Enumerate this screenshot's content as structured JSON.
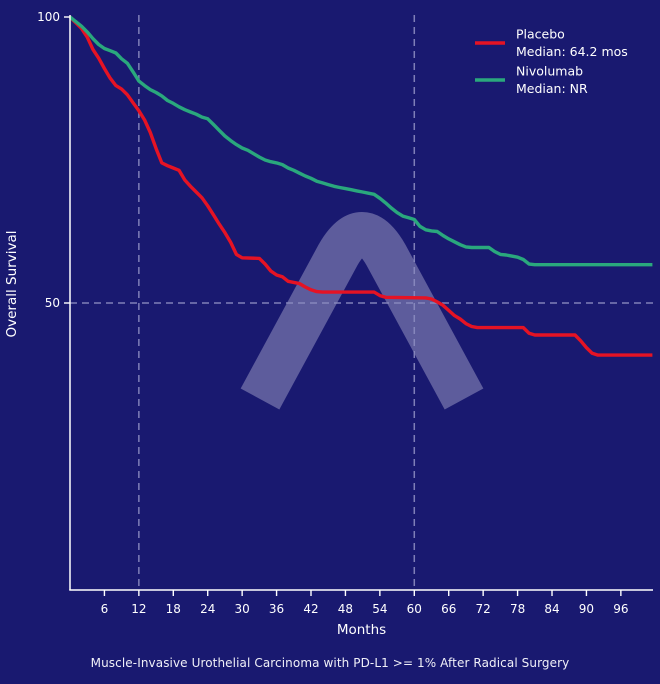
{
  "page": {
    "background_color": "#191970",
    "caption": "Muscle-Invasive Urothelial Carcinoma with PD-L1 >= 1% After Radical Surgery"
  },
  "watermark": {
    "icon": "caret-lambda-watermark",
    "color": "rgba(175,173,210,0.46)"
  },
  "chart_data": {
    "type": "line",
    "subtype": "kaplan-meier-survival-curve",
    "title": "",
    "xlabel": "Months",
    "ylabel": "Overall Survival",
    "xlim": [
      0,
      101.6
    ],
    "ylim": [
      0,
      100
    ],
    "x_ticks": [
      6,
      12,
      18,
      24,
      30,
      36,
      42,
      48,
      54,
      60,
      66,
      72,
      78,
      84,
      90,
      96
    ],
    "y_ticks": [
      100,
      50
    ],
    "grid": {
      "style": "dashed",
      "color": "#8b8bc0",
      "x_dashed_lines_months": [
        12,
        60
      ],
      "y_dashed_lines_values": [
        50
      ]
    },
    "axis_color": "#ffffff",
    "text_color": "#ffffff",
    "legend_position": "top-right",
    "series": [
      {
        "name": "Placebo",
        "median_label": "Median: 64.2 mos",
        "color": "#e51324",
        "points": [
          [
            0,
            100
          ],
          [
            1,
            99
          ],
          [
            2,
            98
          ],
          [
            3,
            96.5
          ],
          [
            4,
            94.3
          ],
          [
            5,
            92.8
          ],
          [
            6,
            91
          ],
          [
            7,
            89.3
          ],
          [
            8,
            88
          ],
          [
            9,
            87.4
          ],
          [
            10,
            86.4
          ],
          [
            11,
            85
          ],
          [
            12,
            83.6
          ],
          [
            13,
            82
          ],
          [
            14,
            79.8
          ],
          [
            15,
            77
          ],
          [
            16,
            74.5
          ],
          [
            17,
            74
          ],
          [
            18,
            73.6
          ],
          [
            19,
            73.2
          ],
          [
            20,
            71.5
          ],
          [
            21,
            70.4
          ],
          [
            22,
            69.4
          ],
          [
            23,
            68.4
          ],
          [
            24,
            67
          ],
          [
            25,
            65.4
          ],
          [
            26,
            63.8
          ],
          [
            27,
            62.3
          ],
          [
            28,
            60.6
          ],
          [
            29,
            58.5
          ],
          [
            30,
            57.9
          ],
          [
            33,
            57.8
          ],
          [
            34,
            56.8
          ],
          [
            35,
            55.6
          ],
          [
            36,
            54.9
          ],
          [
            37,
            54.6
          ],
          [
            38,
            53.8
          ],
          [
            39,
            53.6
          ],
          [
            40,
            53.4
          ],
          [
            41,
            52.8
          ],
          [
            42,
            52.3
          ],
          [
            43,
            52
          ],
          [
            44,
            51.9
          ],
          [
            53,
            51.9
          ],
          [
            54,
            51.3
          ],
          [
            55,
            51
          ],
          [
            62,
            50.9
          ],
          [
            63,
            50.7
          ],
          [
            64,
            50.2
          ],
          [
            65,
            49.6
          ],
          [
            66,
            48.7
          ],
          [
            67,
            47.8
          ],
          [
            68,
            47.2
          ],
          [
            69,
            46.4
          ],
          [
            70,
            45.9
          ],
          [
            71,
            45.7
          ],
          [
            79,
            45.7
          ],
          [
            80,
            44.7
          ],
          [
            81,
            44.4
          ],
          [
            88,
            44.4
          ],
          [
            89,
            43.4
          ],
          [
            90,
            42.2
          ],
          [
            91,
            41.2
          ],
          [
            92,
            40.9
          ],
          [
            101.5,
            40.9
          ]
        ]
      },
      {
        "name": "Nivolumab",
        "median_label": "Median: NR",
        "color": "#2aa87d",
        "points": [
          [
            0,
            100
          ],
          [
            1,
            99.2
          ],
          [
            2,
            98.4
          ],
          [
            3,
            97.4
          ],
          [
            4,
            96.2
          ],
          [
            5,
            95.2
          ],
          [
            6,
            94.5
          ],
          [
            7,
            94.1
          ],
          [
            8,
            93.7
          ],
          [
            9,
            92.7
          ],
          [
            10,
            91.9
          ],
          [
            11,
            90.4
          ],
          [
            12,
            88.8
          ],
          [
            13,
            88
          ],
          [
            14,
            87.3
          ],
          [
            15,
            86.8
          ],
          [
            16,
            86.2
          ],
          [
            17,
            85.4
          ],
          [
            18,
            84.9
          ],
          [
            19,
            84.3
          ],
          [
            20,
            83.8
          ],
          [
            21,
            83.4
          ],
          [
            22,
            83
          ],
          [
            23,
            82.5
          ],
          [
            24,
            82.2
          ],
          [
            25,
            81.2
          ],
          [
            26,
            80.2
          ],
          [
            27,
            79.2
          ],
          [
            28,
            78.4
          ],
          [
            29,
            77.7
          ],
          [
            30,
            77.1
          ],
          [
            31,
            76.7
          ],
          [
            32,
            76.1
          ],
          [
            33,
            75.5
          ],
          [
            34,
            75
          ],
          [
            35,
            74.7
          ],
          [
            36,
            74.5
          ],
          [
            37,
            74.2
          ],
          [
            38,
            73.6
          ],
          [
            39,
            73.2
          ],
          [
            40,
            72.7
          ],
          [
            41,
            72.2
          ],
          [
            42,
            71.8
          ],
          [
            43,
            71.3
          ],
          [
            44,
            71
          ],
          [
            45,
            70.7
          ],
          [
            46,
            70.4
          ],
          [
            47,
            70.2
          ],
          [
            48,
            70
          ],
          [
            49,
            69.8
          ],
          [
            50,
            69.6
          ],
          [
            51,
            69.4
          ],
          [
            52,
            69.2
          ],
          [
            53,
            69
          ],
          [
            54,
            68.3
          ],
          [
            55,
            67.5
          ],
          [
            56,
            66.6
          ],
          [
            57,
            65.8
          ],
          [
            58,
            65.2
          ],
          [
            59,
            64.9
          ],
          [
            60,
            64.6
          ],
          [
            61,
            63.4
          ],
          [
            62,
            62.8
          ],
          [
            63,
            62.6
          ],
          [
            64,
            62.5
          ],
          [
            65,
            61.8
          ],
          [
            66,
            61.2
          ],
          [
            67,
            60.7
          ],
          [
            68,
            60.2
          ],
          [
            69,
            59.8
          ],
          [
            70,
            59.7
          ],
          [
            73,
            59.7
          ],
          [
            74,
            59
          ],
          [
            75,
            58.5
          ],
          [
            76,
            58.4
          ],
          [
            77,
            58.2
          ],
          [
            78,
            58
          ],
          [
            79,
            57.6
          ],
          [
            80,
            56.8
          ],
          [
            81,
            56.7
          ],
          [
            101.5,
            56.7
          ]
        ]
      }
    ]
  }
}
